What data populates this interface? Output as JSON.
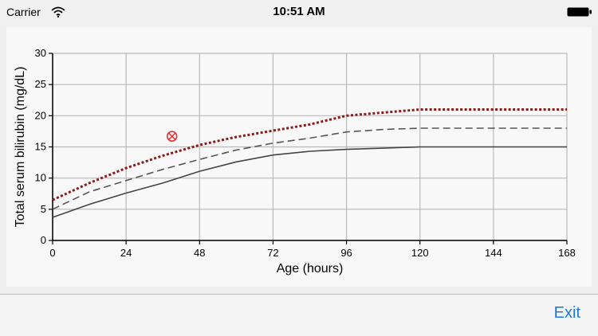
{
  "status_bar": {
    "carrier": "Carrier",
    "time": "10:51 AM",
    "wifi_icon": "wifi-icon",
    "battery_icon": "battery-icon"
  },
  "chart_data": {
    "type": "line",
    "xlabel": "Age (hours)",
    "ylabel": "Total serum bilirubin (mg/dL)",
    "xlim": [
      0,
      168
    ],
    "ylim": [
      0,
      30
    ],
    "xticks": [
      0,
      24,
      48,
      72,
      96,
      120,
      144,
      168
    ],
    "yticks": [
      0,
      5,
      10,
      15,
      20,
      25,
      30
    ],
    "grid": true,
    "series": [
      {
        "style": "dotted",
        "color": "#8b1a1a",
        "x": [
          0,
          12,
          24,
          36,
          48,
          60,
          72,
          84,
          96,
          108,
          120,
          144,
          168
        ],
        "y": [
          6.5,
          9.2,
          11.6,
          13.6,
          15.3,
          16.6,
          17.6,
          18.6,
          20.0,
          20.5,
          21.0,
          21.0,
          21.0
        ]
      },
      {
        "style": "dashed",
        "color": "#555555",
        "x": [
          0,
          12,
          24,
          36,
          48,
          60,
          72,
          84,
          96,
          108,
          120,
          144,
          168
        ],
        "y": [
          5.0,
          7.8,
          9.6,
          11.4,
          13.0,
          14.5,
          15.6,
          16.4,
          17.4,
          17.8,
          18.0,
          18.0,
          18.0
        ]
      },
      {
        "style": "solid",
        "color": "#444444",
        "x": [
          0,
          12,
          24,
          36,
          48,
          60,
          72,
          84,
          96,
          108,
          120,
          144,
          168
        ],
        "y": [
          3.7,
          5.8,
          7.6,
          9.2,
          11.1,
          12.6,
          13.7,
          14.3,
          14.6,
          14.8,
          15.0,
          15.0,
          15.0
        ]
      }
    ],
    "marker": {
      "icon": "crossed-circle-marker",
      "color": "#e03030",
      "x": 39,
      "y": 16.7
    }
  },
  "footer": {
    "exit_label": "Exit"
  }
}
